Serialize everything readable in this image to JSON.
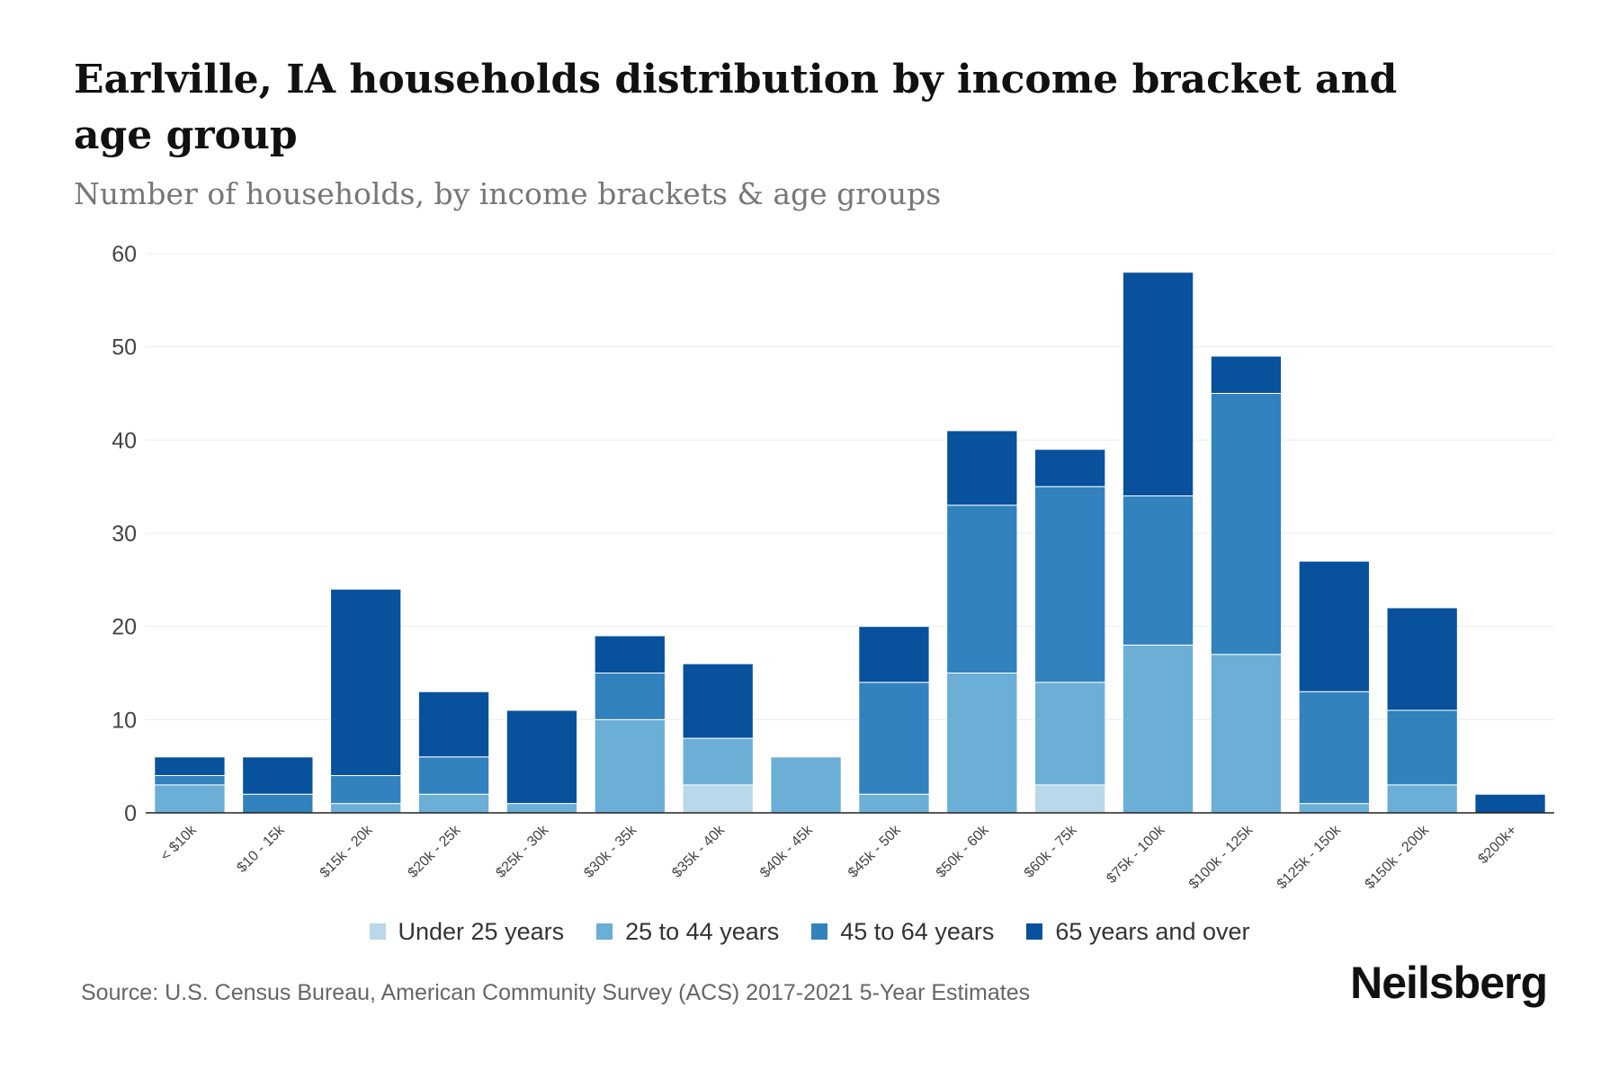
{
  "chart_data": {
    "type": "bar",
    "stacked": true,
    "title": "Earlville, IA households distribution by income bracket and age group",
    "subtitle": "Number of households, by income brackets & age groups",
    "xlabel": "",
    "ylabel": "",
    "ylim": [
      0,
      60
    ],
    "yticks": [
      0,
      10,
      20,
      30,
      40,
      50,
      60
    ],
    "grid": true,
    "legend_position": "bottom",
    "categories": [
      "< $10k",
      "$10 - 15k",
      "$15k - 20k",
      "$20k - 25k",
      "$25k - 30k",
      "$30k - 35k",
      "$35k - 40k",
      "$40k - 45k",
      "$45k - 50k",
      "$50k - 60k",
      "$60k - 75k",
      "$75k - 100k",
      "$100k - 125k",
      "$125k - 150k",
      "$150k - 200k",
      "$200k+"
    ],
    "series": [
      {
        "name": "Under 25 years",
        "color": "#b9d8ea",
        "values": [
          0,
          0,
          0,
          0,
          0,
          0,
          3,
          0,
          0,
          0,
          3,
          0,
          0,
          0,
          0,
          0
        ]
      },
      {
        "name": "25 to 44 years",
        "color": "#6baed6",
        "values": [
          3,
          0,
          1,
          2,
          1,
          10,
          5,
          6,
          2,
          15,
          11,
          18,
          17,
          1,
          3,
          0
        ]
      },
      {
        "name": "45 to 64 years",
        "color": "#3182bd",
        "values": [
          1,
          2,
          3,
          4,
          0,
          5,
          0,
          0,
          12,
          18,
          21,
          16,
          28,
          12,
          8,
          0
        ]
      },
      {
        "name": "65 years and over",
        "color": "#08519c",
        "values": [
          2,
          4,
          20,
          7,
          10,
          4,
          8,
          0,
          6,
          8,
          4,
          24,
          4,
          14,
          11,
          2
        ]
      }
    ]
  },
  "source": "Source: U.S. Census Bureau, American Community Survey (ACS) 2017-2021 5-Year Estimates",
  "brand": "Neilsberg"
}
